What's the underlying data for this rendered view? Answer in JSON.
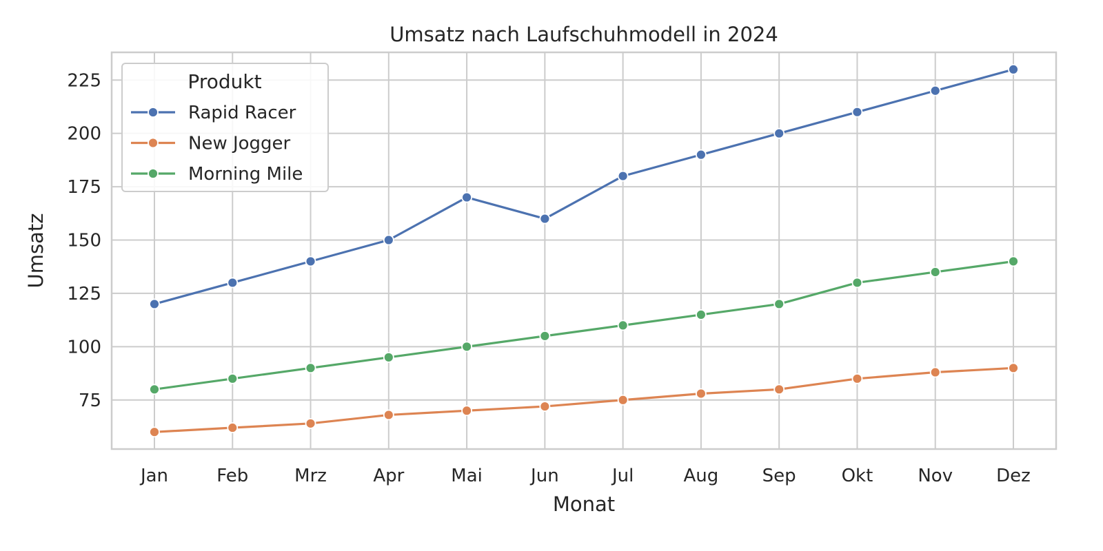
{
  "chart_data": {
    "type": "line",
    "title": "Umsatz nach Laufschuhmodell in 2024",
    "xlabel": "Monat",
    "ylabel": "Umsatz",
    "categories": [
      "Jan",
      "Feb",
      "Mrz",
      "Apr",
      "Mai",
      "Jun",
      "Jul",
      "Aug",
      "Sep",
      "Okt",
      "Nov",
      "Dez"
    ],
    "ylim": [
      52,
      238
    ],
    "yticks": [
      75,
      100,
      125,
      150,
      175,
      200,
      225
    ],
    "grid": true,
    "legend": {
      "title": "Produkt",
      "placement": "top-left"
    },
    "series": [
      {
        "name": "Rapid Racer",
        "color": "#4c72b0",
        "values": [
          120,
          130,
          140,
          150,
          170,
          160,
          180,
          190,
          200,
          210,
          220,
          230
        ]
      },
      {
        "name": "New Jogger",
        "color": "#dd8452",
        "values": [
          60,
          62,
          64,
          68,
          70,
          72,
          75,
          78,
          80,
          85,
          88,
          90
        ]
      },
      {
        "name": "Morning Mile",
        "color": "#55a868",
        "values": [
          80,
          85,
          90,
          95,
          100,
          105,
          110,
          115,
          120,
          130,
          135,
          140
        ]
      }
    ]
  }
}
